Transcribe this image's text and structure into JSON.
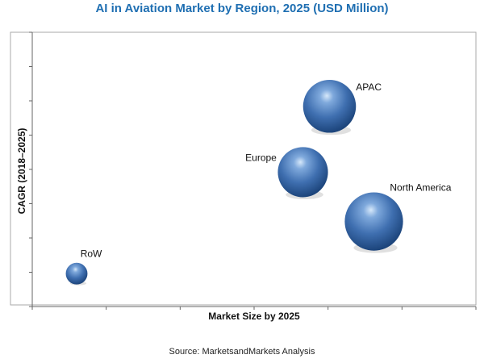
{
  "title": "AI in Aviation Market by Region, 2025 (USD Million)",
  "source": "Source: MarketsandMarkets Analysis",
  "chart_data": {
    "type": "scatter",
    "subtype": "bubble",
    "title": "AI in Aviation Market by Region, 2025 (USD Million)",
    "xlabel": "Market Size by 2025",
    "ylabel": "CAGR (2018–2025)",
    "x_ticks_labeled": false,
    "y_ticks_labeled": false,
    "xlim": [
      0,
      100
    ],
    "ylim": [
      0,
      100
    ],
    "grid": false,
    "legend": "none",
    "bubble_color": "#3f6fb0",
    "points": [
      {
        "label": "APAC",
        "x": 67,
        "y": 73,
        "size": 0.78
      },
      {
        "label": "Europe",
        "x": 61,
        "y": 49,
        "size": 0.74
      },
      {
        "label": "North America",
        "x": 77,
        "y": 31,
        "size": 0.86
      },
      {
        "label": "RoW",
        "x": 10,
        "y": 12,
        "size": 0.32
      }
    ]
  }
}
